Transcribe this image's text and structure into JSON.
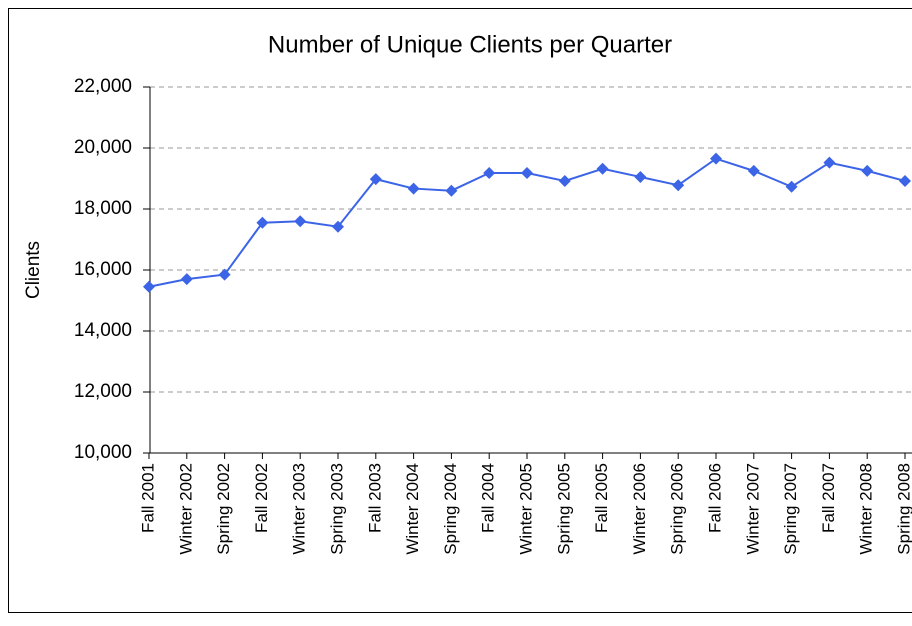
{
  "chart_data": {
    "type": "line",
    "title": "Number of Unique Clients per Quarter",
    "y_label": "Clients",
    "categories": [
      "Fall 2001",
      "Winter 2002",
      "Spring 2002",
      "Fall 2002",
      "Winter 2003",
      "Spring 2003",
      "Fall 2003",
      "Winter 2004",
      "Spring 2004",
      "Fall 2004",
      "Winter 2005",
      "Spring 2005",
      "Fall 2005",
      "Winter 2006",
      "Spring 2006",
      "Fall 2006",
      "Winter 2007",
      "Spring 2007",
      "Fall 2007",
      "Winter 2008",
      "Spring 2008"
    ],
    "values": [
      15450,
      15700,
      15850,
      17550,
      17600,
      17420,
      18980,
      18670,
      18600,
      19180,
      19180,
      18920,
      19320,
      19050,
      18780,
      19650,
      19250,
      18730,
      19520,
      19250,
      18920
    ],
    "color": "#3c64e6",
    "ylim": [
      10000,
      22000
    ],
    "yticks": [
      {
        "value": 10000,
        "label": "10,000"
      },
      {
        "value": 12000,
        "label": "12,000"
      },
      {
        "value": 14000,
        "label": "14,000"
      },
      {
        "value": 16000,
        "label": "16,000"
      },
      {
        "value": 18000,
        "label": "18,000"
      },
      {
        "value": 20000,
        "label": "20,000"
      },
      {
        "value": 22000,
        "label": "22,000"
      }
    ],
    "grid": true
  }
}
